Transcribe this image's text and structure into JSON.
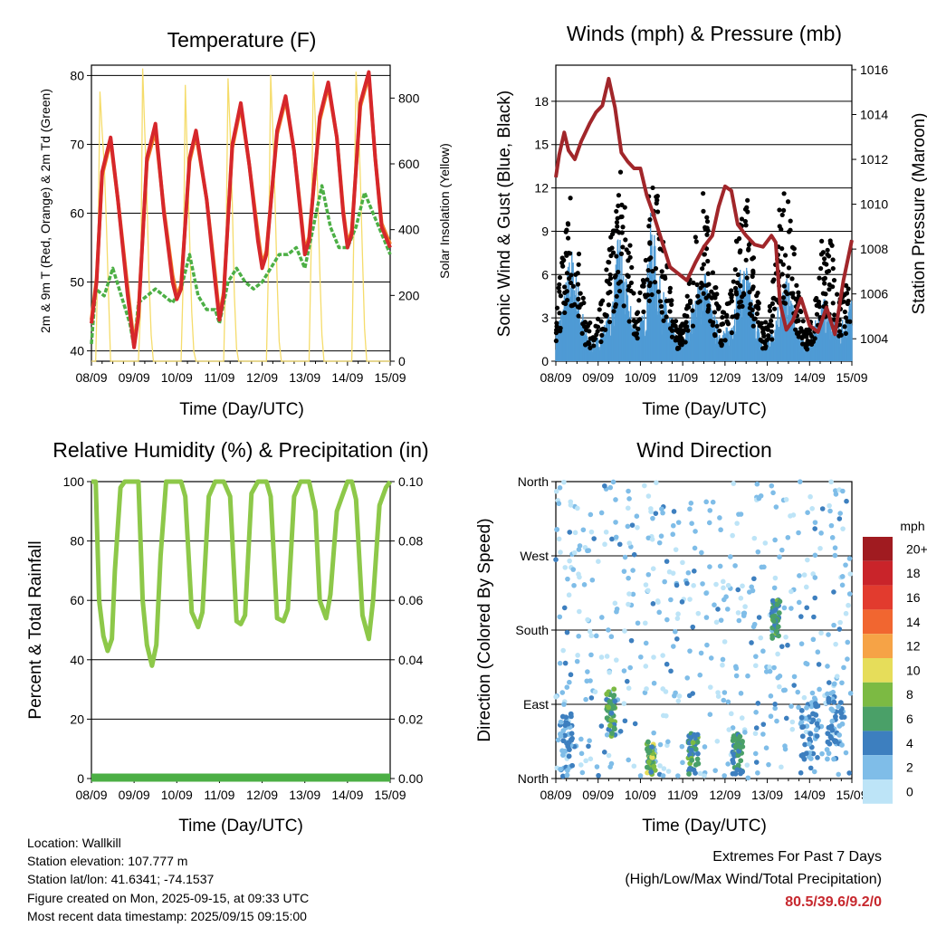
{
  "info": {
    "location": "Location: Wallkill",
    "elevation": "Station elevation: 107.777 m",
    "latlon": "Station lat/lon: 41.6341; -74.1537",
    "created": "Figure created on Mon, 2025-09-15, at 09:33 UTC",
    "recent": "Most recent data timestamp: 2025/09/15 09:15:00"
  },
  "extremes": {
    "title": "Extremes For Past 7 Days",
    "subtitle": "(High/Low/Max Wind/Total Precipitation)",
    "values": "80.5/39.6/9.2/0"
  },
  "chart_data": [
    {
      "type": "line",
      "title": "Temperature (F)",
      "xlabel": "Time (Day/UTC)",
      "ylabel": "2m & 9m T (Red, Orange) & 2m Td (Green)",
      "y2label": "Solar Insolation (Yellow)",
      "xticks": [
        "08/09",
        "09/09",
        "10/09",
        "11/09",
        "12/09",
        "13/09",
        "14/09",
        "15/09"
      ],
      "xlim": [
        0,
        7
      ],
      "ylim": [
        38.5,
        81.5
      ],
      "yticks": [
        40,
        50,
        60,
        70,
        80
      ],
      "y2lim": [
        0,
        900
      ],
      "y2ticks": [
        0,
        200,
        400,
        600,
        800
      ],
      "grid": true,
      "colors": {
        "t2m": "#d6272b",
        "t9m": "#f07e27",
        "td": "#4caf45",
        "solar": "#f5dc6b"
      },
      "series": [
        {
          "id": "t2m",
          "x": [
            0,
            0.12,
            0.25,
            0.45,
            0.62,
            0.85,
            1.0,
            1.1,
            1.3,
            1.5,
            1.7,
            1.9,
            2.0,
            2.1,
            2.3,
            2.45,
            2.7,
            2.9,
            3.0,
            3.1,
            3.3,
            3.5,
            3.7,
            3.9,
            4.0,
            4.1,
            4.35,
            4.55,
            4.75,
            4.9,
            5.0,
            5.1,
            5.35,
            5.55,
            5.75,
            5.9,
            6.0,
            6.1,
            6.3,
            6.5,
            6.65,
            6.8,
            7.0
          ],
          "y": [
            44,
            50,
            66,
            71,
            62,
            48,
            40.5,
            45,
            68,
            73,
            60,
            50,
            47.5,
            49,
            68,
            72,
            62,
            50,
            44.5,
            48,
            70,
            76,
            67,
            56,
            52,
            54,
            72,
            77,
            69,
            60,
            54,
            56,
            74,
            79,
            71,
            60,
            55,
            57,
            76,
            80.5,
            68,
            58,
            55
          ]
        },
        {
          "id": "t9m",
          "x": [
            0,
            0.12,
            0.25,
            0.45,
            0.62,
            0.85,
            1.0,
            1.1,
            1.3,
            1.5,
            1.7,
            1.9,
            2.0,
            2.1,
            2.3,
            2.45,
            2.7,
            2.9,
            3.0,
            3.1,
            3.3,
            3.5,
            3.7,
            3.9,
            4.0,
            4.1,
            4.35,
            4.55,
            4.75,
            4.9,
            5.0,
            5.1,
            5.35,
            5.55,
            5.75,
            5.9,
            6.0,
            6.1,
            6.3,
            6.5,
            6.65,
            6.8,
            7.0
          ],
          "y": [
            44.5,
            50.5,
            65.5,
            70.5,
            62,
            49,
            41,
            45.5,
            67.5,
            72,
            60.5,
            51,
            48,
            49.5,
            67.5,
            71.5,
            62,
            51,
            45,
            48.5,
            69.5,
            75.5,
            67,
            57,
            52.5,
            54.5,
            71.5,
            76.5,
            69,
            60.5,
            54.5,
            56.5,
            73.5,
            78.5,
            71,
            60.5,
            55.5,
            57.5,
            75.5,
            80,
            68,
            58.5,
            55.5
          ]
        },
        {
          "id": "td",
          "x": [
            0,
            0.1,
            0.3,
            0.5,
            0.7,
            0.9,
            1.0,
            1.1,
            1.3,
            1.5,
            1.7,
            1.9,
            2.1,
            2.3,
            2.5,
            2.7,
            2.9,
            3.0,
            3.2,
            3.4,
            3.6,
            3.8,
            4.0,
            4.2,
            4.4,
            4.6,
            4.8,
            5.0,
            5.2,
            5.4,
            5.6,
            5.8,
            6.0,
            6.2,
            6.4,
            6.6,
            6.8,
            7.0
          ],
          "y": [
            41,
            49,
            48,
            52,
            48,
            44,
            40.5,
            47,
            48,
            49,
            48,
            47,
            49,
            54,
            48,
            46,
            46,
            44,
            50,
            52,
            50,
            49,
            50,
            52,
            54,
            54,
            55,
            52,
            58,
            64,
            58,
            55,
            55,
            58,
            63,
            60,
            57,
            54
          ]
        },
        {
          "id": "solar",
          "x": [
            0,
            0.1,
            0.15,
            0.2,
            0.25,
            0.3,
            0.35,
            0.4,
            0.45,
            1.0,
            1.1,
            1.15,
            1.2,
            1.25,
            1.3,
            1.35,
            1.4,
            1.45,
            2.0,
            2.1,
            2.15,
            2.2,
            2.25,
            2.3,
            2.35,
            2.4,
            2.45,
            3.0,
            3.1,
            3.15,
            3.2,
            3.25,
            3.3,
            3.35,
            3.4,
            3.45,
            4.0,
            4.1,
            4.15,
            4.2,
            4.25,
            4.3,
            4.35,
            4.4,
            4.45,
            5.0,
            5.1,
            5.15,
            5.2,
            5.25,
            5.3,
            5.35,
            5.4,
            5.45,
            6.0,
            6.1,
            6.15,
            6.2,
            6.25,
            6.3,
            6.35,
            6.4,
            6.45,
            7.0
          ],
          "y": [
            0,
            0,
            300,
            820,
            700,
            600,
            420,
            200,
            0,
            0,
            0,
            150,
            890,
            700,
            500,
            250,
            80,
            0,
            0,
            0,
            250,
            840,
            600,
            380,
            150,
            30,
            0,
            0,
            0,
            300,
            860,
            700,
            480,
            200,
            40,
            0,
            0,
            0,
            300,
            870,
            700,
            500,
            250,
            60,
            0,
            0,
            0,
            350,
            880,
            720,
            520,
            280,
            80,
            0,
            0,
            0,
            400,
            880,
            750,
            560,
            320,
            100,
            0,
            0
          ]
        }
      ]
    },
    {
      "type": "scatter",
      "title": "Winds (mph) & Pressure (mb)",
      "xlabel": "Time (Day/UTC)",
      "ylabel": "Sonic Wind & Gust (Blue, Black)",
      "y2label": "Station Pressure (Maroon)",
      "xticks": [
        "08/09",
        "09/09",
        "10/09",
        "11/09",
        "12/09",
        "13/09",
        "14/09",
        "15/09"
      ],
      "xlim": [
        0,
        7
      ],
      "ylim": [
        0,
        20.5
      ],
      "yticks": [
        0,
        3,
        6,
        9,
        12,
        15,
        18
      ],
      "y2lim": [
        1003,
        1016.2
      ],
      "y2ticks": [
        1004,
        1006,
        1008,
        1010,
        1012,
        1014,
        1016
      ],
      "grid": true,
      "colors": {
        "wind": "#4f9bd5",
        "gust": "#000000",
        "pressure": "#a1262a"
      },
      "wind_envelope": {
        "x": [
          0,
          0.2,
          0.35,
          0.5,
          0.7,
          0.9,
          1.1,
          1.3,
          1.5,
          1.7,
          1.9,
          2.1,
          2.25,
          2.45,
          2.7,
          2.9,
          3.1,
          3.3,
          3.5,
          3.7,
          3.9,
          4.1,
          4.3,
          4.5,
          4.7,
          4.9,
          5.1,
          5.3,
          5.5,
          5.7,
          5.9,
          6.1,
          6.3,
          6.5,
          6.7,
          6.9,
          7.0
        ],
        "y": [
          2,
          4,
          7,
          5,
          2,
          1,
          2,
          3,
          8,
          4,
          2,
          3,
          9,
          5,
          3,
          1,
          2,
          4,
          6,
          3,
          2,
          2,
          5,
          6,
          3,
          1,
          2,
          4,
          5,
          2,
          1,
          2,
          4,
          3,
          2,
          3,
          4
        ]
      },
      "gust_envelope": {
        "x": [
          0,
          0.2,
          0.35,
          0.5,
          0.7,
          0.9,
          1.1,
          1.3,
          1.5,
          1.7,
          1.9,
          2.1,
          2.25,
          2.45,
          2.7,
          2.9,
          3.1,
          3.3,
          3.5,
          3.7,
          3.9,
          4.1,
          4.3,
          4.5,
          4.7,
          4.9,
          5.1,
          5.3,
          5.5,
          5.7,
          5.9,
          6.1,
          6.3,
          6.5,
          6.7,
          6.9,
          7.0
        ],
        "y": [
          3,
          8,
          11,
          8,
          3,
          2,
          4,
          8,
          13,
          9,
          3,
          6,
          13,
          10,
          5,
          2,
          4,
          8,
          11,
          6,
          3,
          4,
          9,
          11,
          6,
          2,
          4,
          10,
          12,
          5,
          2,
          3,
          8,
          9,
          4,
          5,
          6
        ]
      },
      "pressure": {
        "x": [
          0,
          0.08,
          0.2,
          0.3,
          0.45,
          0.6,
          0.8,
          0.95,
          1.1,
          1.25,
          1.4,
          1.55,
          1.7,
          1.85,
          2.0,
          2.15,
          2.3,
          2.5,
          2.7,
          2.9,
          3.1,
          3.3,
          3.5,
          3.7,
          3.85,
          4.0,
          4.15,
          4.3,
          4.5,
          4.7,
          4.9,
          5.1,
          5.2,
          5.3,
          5.45,
          5.6,
          5.8,
          6.0,
          6.2,
          6.4,
          6.6,
          6.8,
          7.0
        ],
        "y": [
          1011.2,
          1012.2,
          1013.2,
          1012.4,
          1012,
          1012.8,
          1013.6,
          1014.1,
          1014.4,
          1015.6,
          1014.3,
          1012.3,
          1011.9,
          1011.6,
          1011.6,
          1010.4,
          1009.6,
          1008.4,
          1007.2,
          1006.9,
          1006.6,
          1007.4,
          1008.1,
          1008.6,
          1009.9,
          1010.8,
          1010.6,
          1009.1,
          1008.6,
          1008.2,
          1008.1,
          1008.6,
          1008.3,
          1005.6,
          1004.4,
          1004.8,
          1005.8,
          1004.6,
          1004.3,
          1005.4,
          1004.2,
          1006.6,
          1008.4
        ]
      }
    },
    {
      "type": "line",
      "title": "Relative Humidity (%) & Precipitation (in)",
      "xlabel": "Time (Day/UTC)",
      "ylabel": "Percent & Total Rainfall",
      "xticks": [
        "08/09",
        "09/09",
        "10/09",
        "11/09",
        "12/09",
        "13/09",
        "14/09",
        "15/09"
      ],
      "xlim": [
        0,
        7
      ],
      "ylim": [
        0,
        100
      ],
      "yticks": [
        0,
        20,
        40,
        60,
        80,
        100
      ],
      "y2lim": [
        0,
        0.1
      ],
      "y2ticks": [
        "0.00",
        "0.02",
        "0.04",
        "0.06",
        "0.08",
        "0.10"
      ],
      "grid": true,
      "colors": {
        "rh": "#8dc849",
        "precip": "#4caf45"
      },
      "series": [
        {
          "id": "rh",
          "x": [
            0,
            0.1,
            0.18,
            0.28,
            0.38,
            0.48,
            0.55,
            0.68,
            0.78,
            0.9,
            1.0,
            1.1,
            1.2,
            1.3,
            1.42,
            1.52,
            1.62,
            1.75,
            1.9,
            2.0,
            2.1,
            2.2,
            2.35,
            2.5,
            2.6,
            2.75,
            2.9,
            3.0,
            3.1,
            3.25,
            3.4,
            3.5,
            3.6,
            3.75,
            3.9,
            4.0,
            4.1,
            4.2,
            4.35,
            4.5,
            4.6,
            4.75,
            4.9,
            5.0,
            5.1,
            5.25,
            5.35,
            5.5,
            5.6,
            5.75,
            5.9,
            6.0,
            6.1,
            6.2,
            6.35,
            6.5,
            6.6,
            6.75,
            6.9,
            7.0
          ],
          "y": [
            100,
            100,
            60,
            48,
            43,
            47,
            70,
            98,
            100,
            100,
            100,
            100,
            60,
            45,
            38,
            45,
            75,
            100,
            100,
            100,
            100,
            95,
            56,
            51,
            56,
            95,
            100,
            100,
            100,
            95,
            53,
            52,
            55,
            96,
            100,
            100,
            100,
            95,
            54,
            53,
            57,
            95,
            100,
            100,
            100,
            90,
            60,
            54,
            62,
            90,
            96,
            100,
            100,
            94,
            55,
            47,
            60,
            92,
            98,
            100
          ]
        },
        {
          "id": "precip",
          "x": [
            0,
            7
          ],
          "y": [
            0,
            0
          ]
        }
      ]
    },
    {
      "type": "scatter",
      "title": "Wind Direction",
      "xlabel": "Time (Day/UTC)",
      "ylabel": "Direction (Colored By Speed)",
      "xticks": [
        "08/09",
        "09/09",
        "10/09",
        "11/09",
        "12/09",
        "13/09",
        "14/09",
        "15/09"
      ],
      "xlim": [
        0,
        7
      ],
      "ylim": [
        0,
        360
      ],
      "yticks": [
        "North",
        "East",
        "South",
        "West",
        "North"
      ],
      "grid": true,
      "colorbar": {
        "title": "mph",
        "labels": [
          "20+",
          "18",
          "16",
          "14",
          "12",
          "10",
          "8",
          "6",
          "4",
          "2",
          "0"
        ],
        "colors": [
          "#a01b20",
          "#c9242a",
          "#e23b2e",
          "#f16630",
          "#f6a346",
          "#e6dd5a",
          "#7cba43",
          "#4aa068",
          "#3d7fbf",
          "#7fbde8",
          "#bde4f7"
        ]
      },
      "clusters": [
        {
          "x": 0.25,
          "dir": 40,
          "spread": 0.15,
          "dspread": 40,
          "speed": 4
        },
        {
          "x": 1.3,
          "dir": 80,
          "spread": 0.1,
          "dspread": 30,
          "speed": 7
        },
        {
          "x": 2.25,
          "dir": 25,
          "spread": 0.1,
          "dspread": 20,
          "speed": 8
        },
        {
          "x": 3.25,
          "dir": 30,
          "spread": 0.12,
          "dspread": 25,
          "speed": 6
        },
        {
          "x": 4.3,
          "dir": 30,
          "spread": 0.12,
          "dspread": 25,
          "speed": 6
        },
        {
          "x": 5.2,
          "dir": 195,
          "spread": 0.1,
          "dspread": 25,
          "speed": 7
        },
        {
          "x": 6.0,
          "dir": 60,
          "spread": 0.2,
          "dspread": 40,
          "speed": 4
        },
        {
          "x": 6.6,
          "dir": 60,
          "spread": 0.2,
          "dspread": 40,
          "speed": 4
        }
      ]
    }
  ]
}
